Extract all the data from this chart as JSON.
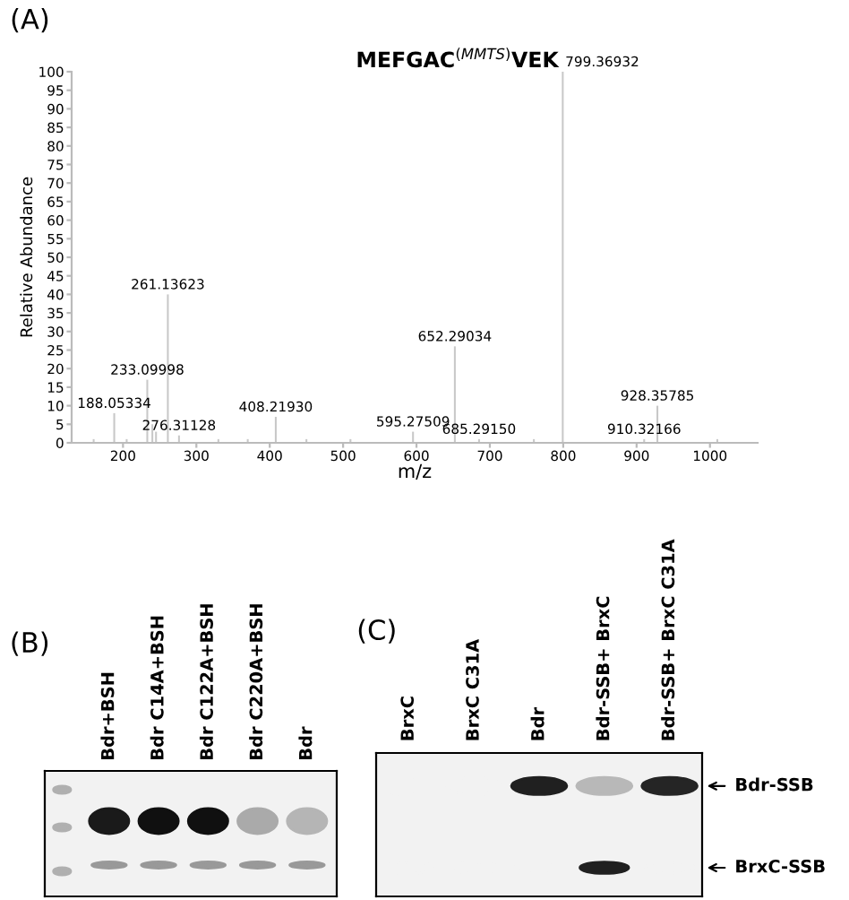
{
  "chart_data": [
    {
      "type": "bar",
      "title": "(A)",
      "subtitle": "MEFGAC$^{(MMTS)}$VEK",
      "xlabel": "m/z",
      "ylabel": "Relative Abundance",
      "x": [
        160,
        188.05334,
        205,
        233.09998,
        240,
        245,
        261.13623,
        276.31128,
        330,
        370,
        408.2193,
        450,
        510,
        595.27509,
        652.29034,
        685.2915,
        760,
        799.36932,
        910.32166,
        928.35785,
        1010
      ],
      "values": [
        1,
        8,
        1,
        17,
        5,
        3,
        40,
        2,
        1,
        1,
        7,
        1,
        1,
        3,
        26,
        1,
        1,
        100,
        1,
        10,
        1
      ],
      "color": "#c8c8c8",
      "xlim": [
        130,
        1065
      ],
      "ylim": [
        0,
        100
      ],
      "xticks": [
        200,
        300,
        400,
        500,
        600,
        700,
        800,
        900,
        1000
      ],
      "yticks": [
        0,
        5,
        10,
        15,
        20,
        25,
        30,
        35,
        40,
        45,
        50,
        55,
        60,
        65,
        70,
        75,
        80,
        85,
        90,
        95,
        100
      ],
      "grid": false,
      "annotations": [
        {
          "text": "188.05334",
          "x": 188.05334,
          "y": 8
        },
        {
          "text": "233.09998",
          "x": 233.09998,
          "y": 17
        },
        {
          "text": "261.13623",
          "x": 261.13623,
          "y": 40
        },
        {
          "text": "276.31128",
          "x": 276.31128,
          "y": 2
        },
        {
          "text": "408.21930",
          "x": 408.2193,
          "y": 7
        },
        {
          "text": "595.27509",
          "x": 595.27509,
          "y": 3
        },
        {
          "text": "652.29034",
          "x": 652.29034,
          "y": 26
        },
        {
          "text": "685.29150",
          "x": 685.2915,
          "y": 1
        },
        {
          "text": "799.36932",
          "x": 799.36932,
          "y": 100
        },
        {
          "text": "910.32166",
          "x": 910.32166,
          "y": 1
        },
        {
          "text": "928.35785",
          "x": 928.35785,
          "y": 10
        }
      ]
    },
    {
      "type": "other",
      "title": "(B)",
      "categories": [
        "Bdr+BSH",
        "Bdr C14A+BSH",
        "Bdr C122A+BSH",
        "Bdr C220A+BSH",
        "Bdr"
      ]
    },
    {
      "type": "other",
      "title": "(C)",
      "categories": [
        "BrxC",
        "BrxC C31A",
        "Bdr",
        "Bdr-SSB+ BrxC",
        "Bdr-SSB+ BrxC C31A"
      ],
      "annotations": [
        "Bdr-SSB",
        "BrxC-SSB"
      ]
    }
  ]
}
